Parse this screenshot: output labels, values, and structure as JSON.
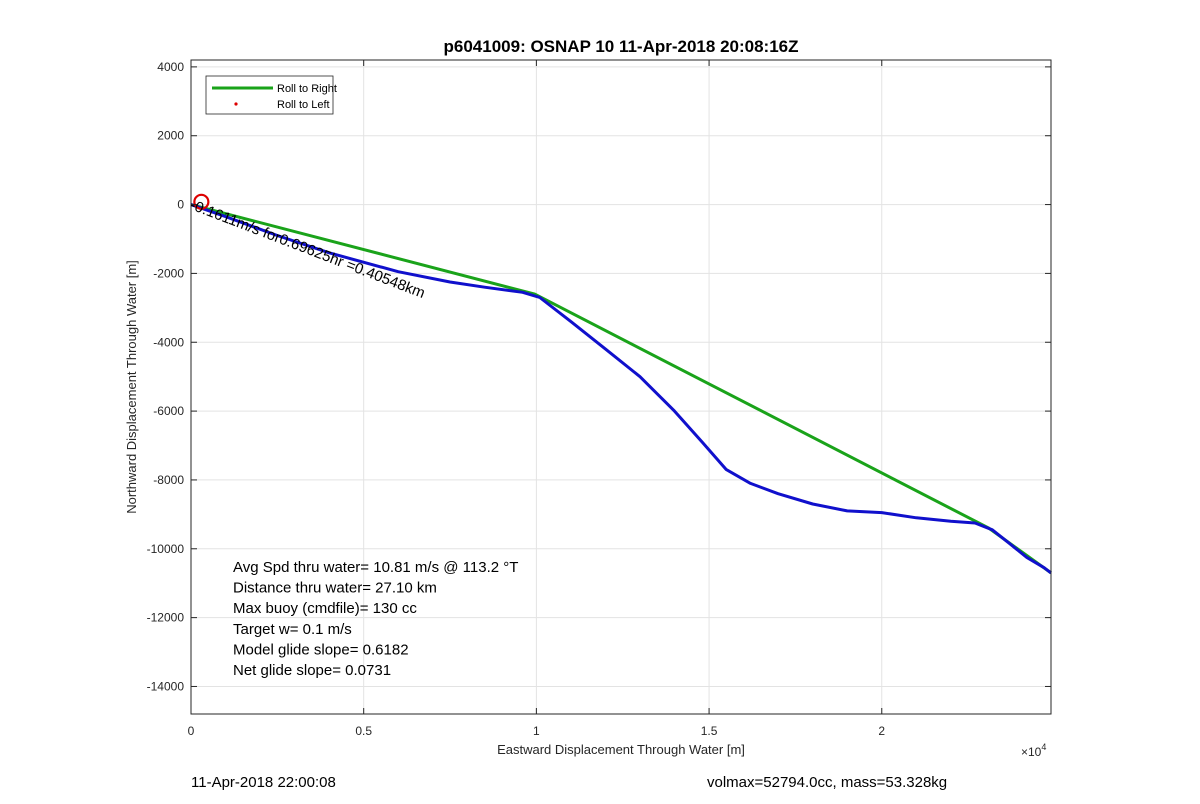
{
  "footer": {
    "timestamp": "11-Apr-2018 22:00:08",
    "volmax_mass": "volmax=52794.0cc, mass=53.328kg"
  },
  "colors": {
    "roll_right": "#1aa31a",
    "track": "#1010cc",
    "roll_left": "#dd0000",
    "grid": "#e3e3e3",
    "axis": "#262626"
  },
  "chart_data": {
    "type": "line",
    "title": "p6041009: OSNAP 10 11-Apr-2018 20:08:16Z",
    "xlabel": "Eastward Displacement Through Water [m]",
    "ylabel": "Northward Displacement Through Water [m]",
    "xlim": [
      0,
      24900
    ],
    "ylim": [
      -14800,
      4200
    ],
    "x_exponent_label": "×10",
    "x_exponent_power": "4",
    "x_ticks": [
      0,
      5000,
      10000,
      15000,
      20000
    ],
    "x_tick_labels": [
      "0",
      "0.5",
      "1",
      "1.5",
      "2"
    ],
    "y_ticks": [
      4000,
      2000,
      0,
      -2000,
      -4000,
      -6000,
      -8000,
      -10000,
      -12000,
      -14000
    ],
    "y_tick_labels": [
      "4000",
      "2000",
      "0",
      "-2000",
      "-4000",
      "-6000",
      "-8000",
      "-10000",
      "-12000",
      "-14000"
    ],
    "grid": true,
    "legend_position": "top-left",
    "legend": [
      {
        "label": "Roll to Right",
        "marker": "line"
      },
      {
        "label": "Roll to Left",
        "marker": "dot"
      }
    ],
    "series": [
      {
        "name": "Roll to Right",
        "x": [
          0,
          9950,
          23100,
          24900
        ],
        "y": [
          0,
          -2600,
          -9400,
          -10700
        ]
      },
      {
        "x": [
          0,
          1000,
          2500,
          4000,
          6000,
          7500,
          8500,
          9600,
          10100,
          11000,
          12000,
          13000,
          14000,
          14800,
          15500,
          16200,
          17000,
          18000,
          19000,
          20000,
          21000,
          22000,
          22700,
          23200,
          23700,
          24200,
          24700,
          24900
        ],
        "y": [
          0,
          -350,
          -900,
          -1400,
          -1950,
          -2250,
          -2400,
          -2550,
          -2700,
          -3400,
          -4200,
          -5000,
          -6000,
          -6900,
          -7700,
          -8100,
          -8400,
          -8700,
          -8900,
          -8950,
          -9100,
          -9200,
          -9250,
          -9450,
          -9850,
          -10250,
          -10550,
          -10700
        ]
      },
      {
        "name": "Roll to Left",
        "x": [
          300
        ],
        "y": [
          80
        ]
      }
    ],
    "annotation": {
      "text": "-0.1611m/s for0.69625hr =0.40548km",
      "x": 0,
      "y": 0
    },
    "stats": [
      "Avg Spd thru water= 10.81 m/s @ 113.2 °T",
      "Distance thru water= 27.10 km",
      "Max buoy (cmdfile)= 130 cc",
      "Target w= 0.1 m/s",
      "Model glide slope= 0.6182",
      "Net glide slope= 0.0731"
    ]
  }
}
